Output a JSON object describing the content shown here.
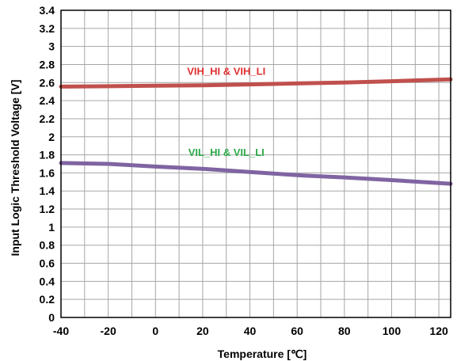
{
  "chart_data": {
    "type": "line",
    "xlabel": "Temperature [℃]",
    "ylabel": "Input Logic Threshold Voltage [V]",
    "xlim": [
      -40,
      125
    ],
    "ylim": [
      0,
      3.4
    ],
    "xticks": [
      -40,
      -20,
      0,
      20,
      40,
      60,
      80,
      100,
      120
    ],
    "xtick_labels": [
      "-40",
      "-20",
      "0",
      "20",
      "40",
      "60",
      "80",
      "100",
      "120"
    ],
    "xgrid": [
      -40,
      -30,
      -20,
      -10,
      0,
      10,
      20,
      30,
      40,
      50,
      60,
      70,
      80,
      90,
      100,
      110,
      120
    ],
    "yticks": [
      0,
      0.2,
      0.4,
      0.6,
      0.8,
      1,
      1.2,
      1.4,
      1.6,
      1.8,
      2,
      2.2,
      2.4,
      2.6,
      2.8,
      3,
      3.2,
      3.4
    ],
    "ytick_labels": [
      "0",
      "0.2",
      "0.4",
      "0.6",
      "0.8",
      "1",
      "1.2",
      "1.4",
      "1.6",
      "1.8",
      "2",
      "2.2",
      "2.4",
      "2.6",
      "2.8",
      "3",
      "3.2",
      "3.4"
    ],
    "grid": true,
    "series": [
      {
        "name": "VIH_HI & VIH_LI",
        "color": "#c0504d",
        "x": [
          -40,
          -20,
          0,
          20,
          40,
          60,
          80,
          100,
          125
        ],
        "y": [
          2.555,
          2.56,
          2.565,
          2.57,
          2.58,
          2.59,
          2.6,
          2.615,
          2.635
        ]
      },
      {
        "name": "VIL_HI & VIL_LI",
        "color": "#8064a2",
        "x": [
          -40,
          -20,
          0,
          20,
          40,
          60,
          80,
          100,
          125
        ],
        "y": [
          1.71,
          1.7,
          1.67,
          1.645,
          1.61,
          1.575,
          1.55,
          1.52,
          1.48
        ]
      }
    ],
    "annotations": [
      {
        "text": "VIH_HI & VIH_LI",
        "color": "#e03030",
        "x": 30,
        "y": 2.73
      },
      {
        "text": "VIL_HI & VIL_LI",
        "color": "#2eaa4a",
        "x": 30,
        "y": 1.83
      }
    ]
  }
}
